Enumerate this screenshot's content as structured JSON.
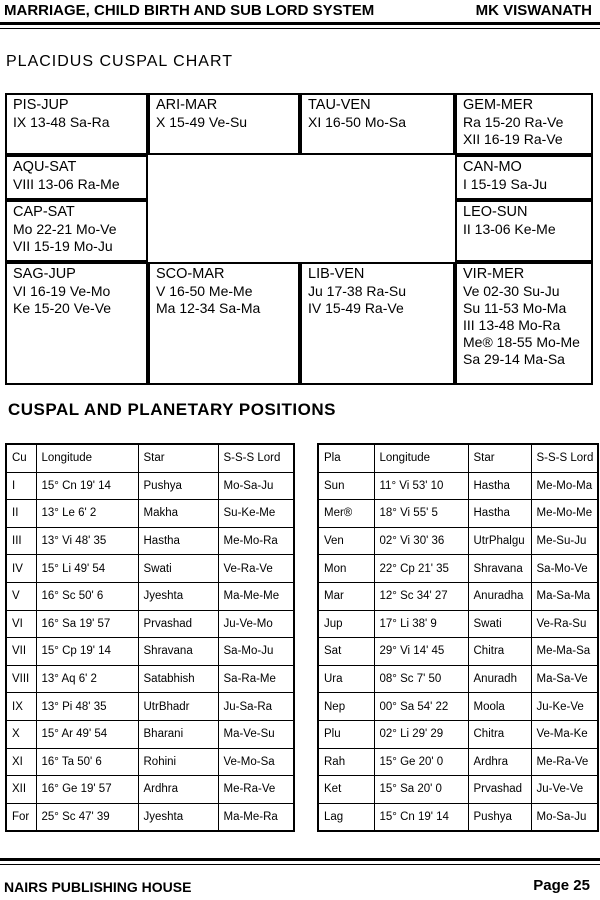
{
  "header": {
    "title": "MARRIAGE, CHILD BIRTH AND SUB LORD SYSTEM",
    "author": "MK VISWANATH"
  },
  "chart": {
    "title": "PLACIDUS CUSPAL CHART",
    "cells": [
      {
        "name": "PIS-JUP",
        "lines": [
          "IX 13-48 Sa-Ra"
        ]
      },
      {
        "name": "ARI-MAR",
        "lines": [
          "X 15-49 Ve-Su"
        ]
      },
      {
        "name": "TAU-VEN",
        "lines": [
          "XI 16-50 Mo-Sa"
        ]
      },
      {
        "name": "GEM-MER",
        "lines": [
          "Ra 15-20 Ra-Ve",
          "XII 16-19 Ra-Ve"
        ]
      },
      {
        "name": "AQU-SAT",
        "lines": [
          "VIII 13-06 Ra-Me"
        ]
      },
      {
        "name": "CAN-MO",
        "lines": [
          "I 15-19 Sa-Ju"
        ]
      },
      {
        "name": "CAP-SAT",
        "lines": [
          "Mo 22-21 Mo-Ve",
          "VII 15-19 Mo-Ju"
        ]
      },
      {
        "name": "LEO-SUN",
        "lines": [
          "II 13-06 Ke-Me"
        ]
      },
      {
        "name": "SAG-JUP",
        "lines": [
          "VI 16-19 Ve-Mo",
          "Ke 15-20 Ve-Ve"
        ]
      },
      {
        "name": "SCO-MAR",
        "lines": [
          "V 16-50 Me-Me",
          "Ma 12-34 Sa-Ma"
        ]
      },
      {
        "name": "LIB-VEN",
        "lines": [
          "Ju 17-38 Ra-Su",
          "IV 15-49 Ra-Ve"
        ]
      },
      {
        "name": "VIR-MER",
        "lines": [
          "Ve 02-30 Su-Ju",
          "Su 11-53 Mo-Ma",
          "III 13-48 Mo-Ra",
          "Me® 18-55 Mo-Me",
          "Sa 29-14 Ma-Sa"
        ]
      }
    ]
  },
  "positions": {
    "title": "CUSPAL AND PLANETARY POSITIONS",
    "cusps": {
      "header": [
        "Cu",
        "Longitude",
        "Star",
        "S-S-S Lord"
      ],
      "rows": [
        [
          "I",
          "15° Cn 19' 14",
          "Pushya",
          "Mo-Sa-Ju"
        ],
        [
          "II",
          "13° Le 6' 2",
          "Makha",
          "Su-Ke-Me"
        ],
        [
          "III",
          "13° Vi 48' 35",
          "Hastha",
          "Me-Mo-Ra"
        ],
        [
          "IV",
          "15° Li 49' 54",
          "Swati",
          "Ve-Ra-Ve"
        ],
        [
          "V",
          "16° Sc 50' 6",
          "Jyeshta",
          "Ma-Me-Me"
        ],
        [
          "VI",
          "16° Sa 19' 57",
          "Prvashad",
          "Ju-Ve-Mo"
        ],
        [
          "VII",
          "15° Cp 19' 14",
          "Shravana",
          "Sa-Mo-Ju"
        ],
        [
          "VIII",
          "13° Aq 6' 2",
          "Satabhish",
          "Sa-Ra-Me"
        ],
        [
          "IX",
          "13° Pi 48' 35",
          "UtrBhadr",
          "Ju-Sa-Ra"
        ],
        [
          "X",
          "15° Ar 49' 54",
          "Bharani",
          "Ma-Ve-Su"
        ],
        [
          "XI",
          "16° Ta 50' 6",
          "Rohini",
          "Ve-Mo-Sa"
        ],
        [
          "XII",
          "16° Ge 19' 57",
          "Ardhra",
          "Me-Ra-Ve"
        ],
        [
          "For",
          "25° Sc 47' 39",
          "Jyeshta",
          "Ma-Me-Ra"
        ]
      ]
    },
    "planets": {
      "header": [
        "Pla",
        "Longitude",
        "Star",
        "S-S-S Lord"
      ],
      "rows": [
        [
          "Sun",
          "11° Vi 53' 10",
          "Hastha",
          "Me-Mo-Ma"
        ],
        [
          "Mer®",
          "18° Vi 55' 5",
          "Hastha",
          "Me-Mo-Me"
        ],
        [
          "Ven",
          "02° Vi 30' 36",
          "UtrPhalgu",
          "Me-Su-Ju"
        ],
        [
          "Mon",
          "22° Cp 21' 35",
          "Shravana",
          "Sa-Mo-Ve"
        ],
        [
          "Mar",
          "12° Sc 34' 27",
          "Anuradha",
          "Ma-Sa-Ma"
        ],
        [
          "Jup",
          "17° Li 38' 9",
          "Swati",
          "Ve-Ra-Su"
        ],
        [
          "Sat",
          "29° Vi 14' 45",
          "Chitra",
          "Me-Ma-Sa"
        ],
        [
          "Ura",
          "08° Sc 7' 50",
          "Anuradh",
          "Ma-Sa-Ve"
        ],
        [
          "Nep",
          "00° Sa 54' 22",
          "Moola",
          "Ju-Ke-Ve"
        ],
        [
          "Plu",
          "02° Li 29' 29",
          "Chitra",
          "Ve-Ma-Ke"
        ],
        [
          "Rah",
          "15° Ge 20' 0",
          "Ardhra",
          "Me-Ra-Ve"
        ],
        [
          "Ket",
          "15° Sa 20' 0",
          "Prvashad",
          "Ju-Ve-Ve"
        ],
        [
          "Lag",
          "15° Cn 19' 14",
          "Pushya",
          "Mo-Sa-Ju"
        ]
      ]
    }
  },
  "footer": {
    "publisher": "NAIRS PUBLISHING HOUSE",
    "page": "Page 25"
  }
}
